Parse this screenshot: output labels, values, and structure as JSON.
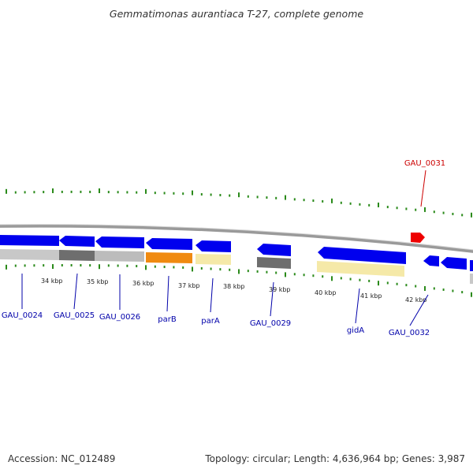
{
  "title": "Gemmatimonas aurantiaca T-27, complete genome",
  "footer": {
    "accession": "Accession: NC_012489",
    "summary": "Topology: circular; Length: 4,636,964 bp; Genes: 3,987"
  },
  "colors": {
    "gene_blue": "#0000ee",
    "gene_red": "#ee0000",
    "tick_green": "#2a8a1a",
    "backbone_gray": "#999999",
    "label_blue": "#0000aa",
    "label_red": "#cc0000"
  },
  "kbp_labels": [
    "34 kbp",
    "35 kbp",
    "36 kbp",
    "37 kbp",
    "38 kbp",
    "39 kbp",
    "40 kbp",
    "41 kbp",
    "42 kbp"
  ],
  "gene_labels": [
    {
      "name": "GAU_0024",
      "color": "blue"
    },
    {
      "name": "GAU_0025",
      "color": "blue"
    },
    {
      "name": "GAU_0026",
      "color": "blue"
    },
    {
      "name": "parB",
      "color": "blue"
    },
    {
      "name": "parA",
      "color": "blue"
    },
    {
      "name": "GAU_0029",
      "color": "blue"
    },
    {
      "name": "gidA",
      "color": "blue"
    },
    {
      "name": "GAU_0031",
      "color": "red"
    },
    {
      "name": "GAU_0032",
      "color": "blue"
    }
  ]
}
